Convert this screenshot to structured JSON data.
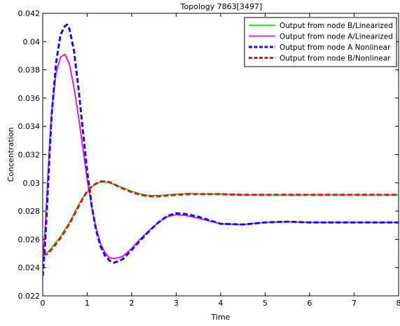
{
  "chart_data": {
    "type": "line",
    "title": "Topology 7863[3497]",
    "xlabel": "Time",
    "ylabel": "Concentration",
    "xlim": [
      0,
      8
    ],
    "ylim": [
      0.022,
      0.042
    ],
    "xticks": [
      0,
      1,
      2,
      3,
      4,
      5,
      6,
      7,
      8
    ],
    "xtick_labels": [
      "0",
      "1",
      "2",
      "3",
      "4",
      "5",
      "6",
      "7",
      "8"
    ],
    "yticks": [
      0.022,
      0.024,
      0.026,
      0.028,
      0.03,
      0.032,
      0.034,
      0.036,
      0.038,
      0.04,
      0.042
    ],
    "ytick_labels": [
      "0.022",
      "0.024",
      "0.026",
      "0.028",
      "0.03",
      "0.032",
      "0.034",
      "0.036",
      "0.038",
      "0.04",
      "0.042"
    ],
    "grid": false,
    "legend_position": "top-right",
    "series": [
      {
        "name": "Output from node B/Linearized",
        "color": "#00ee00",
        "style": "solid",
        "x": [
          0,
          0.1,
          0.2,
          0.3,
          0.4,
          0.5,
          0.6,
          0.7,
          0.8,
          0.9,
          1.0,
          1.1,
          1.2,
          1.3,
          1.4,
          1.5,
          1.6,
          1.8,
          2.0,
          2.2,
          2.4,
          2.6,
          2.8,
          3.0,
          3.3,
          3.6,
          4.0,
          4.5,
          5.0,
          6.0,
          7.0,
          8.0
        ],
        "y": [
          0.0249,
          0.02505,
          0.0254,
          0.0258,
          0.0262,
          0.0267,
          0.0272,
          0.0278,
          0.0284,
          0.02895,
          0.02935,
          0.0297,
          0.02995,
          0.03005,
          0.03005,
          0.03,
          0.0299,
          0.02965,
          0.0294,
          0.0292,
          0.0291,
          0.0291,
          0.02915,
          0.0292,
          0.02925,
          0.0292,
          0.0292,
          0.02915,
          0.02915,
          0.02915,
          0.02915,
          0.02915
        ]
      },
      {
        "name": "Output from node A/Linearized",
        "color": "#ee00ee",
        "style": "solid",
        "x": [
          0,
          0.05,
          0.1,
          0.15,
          0.2,
          0.3,
          0.4,
          0.5,
          0.6,
          0.7,
          0.8,
          0.9,
          1.0,
          1.1,
          1.2,
          1.3,
          1.4,
          1.5,
          1.6,
          1.7,
          1.8,
          2.0,
          2.2,
          2.4,
          2.6,
          2.8,
          3.0,
          3.2,
          3.5,
          4.0,
          4.5,
          5.0,
          5.5,
          6.0,
          7.0,
          8.0
        ],
        "y": [
          0.0245,
          0.0265,
          0.0295,
          0.0325,
          0.035,
          0.0378,
          0.0389,
          0.0391,
          0.0384,
          0.0368,
          0.0348,
          0.0325,
          0.0302,
          0.0283,
          0.0268,
          0.0257,
          0.02505,
          0.0247,
          0.02465,
          0.0247,
          0.0248,
          0.02535,
          0.02605,
          0.02665,
          0.0272,
          0.0276,
          0.02775,
          0.0277,
          0.0275,
          0.0271,
          0.02705,
          0.0272,
          0.02725,
          0.0272,
          0.0272,
          0.0272
        ]
      },
      {
        "name": "Output from node A  Nonlinear",
        "color": "#1111ee",
        "style": "dashed",
        "x": [
          0,
          0.05,
          0.1,
          0.15,
          0.2,
          0.3,
          0.4,
          0.5,
          0.55,
          0.6,
          0.7,
          0.8,
          0.9,
          1.0,
          1.1,
          1.2,
          1.3,
          1.4,
          1.5,
          1.6,
          1.7,
          1.8,
          2.0,
          2.2,
          2.4,
          2.6,
          2.8,
          3.0,
          3.2,
          3.5,
          4.0,
          4.5,
          5.0,
          5.5,
          6.0,
          7.0,
          8.0
        ],
        "y": [
          0.0234,
          0.0255,
          0.0285,
          0.0318,
          0.0348,
          0.0385,
          0.0405,
          0.0411,
          0.0412,
          0.0409,
          0.0394,
          0.0368,
          0.0338,
          0.0308,
          0.0284,
          0.02665,
          0.0255,
          0.02485,
          0.0245,
          0.02435,
          0.02445,
          0.0246,
          0.02525,
          0.02595,
          0.0266,
          0.0272,
          0.02765,
          0.02785,
          0.0278,
          0.0276,
          0.0271,
          0.02705,
          0.0272,
          0.02725,
          0.0272,
          0.0272,
          0.0272
        ]
      },
      {
        "name": "Output from node B/Nonlinear",
        "color": "#ee1111",
        "style": "dashed",
        "x": [
          0,
          0.1,
          0.2,
          0.3,
          0.4,
          0.5,
          0.6,
          0.7,
          0.8,
          0.9,
          1.0,
          1.1,
          1.2,
          1.3,
          1.4,
          1.5,
          1.6,
          1.8,
          2.0,
          2.2,
          2.4,
          2.6,
          2.8,
          3.0,
          3.3,
          3.6,
          4.0,
          4.5,
          5.0,
          6.0,
          7.0,
          8.0
        ],
        "y": [
          0.0249,
          0.02495,
          0.0253,
          0.0257,
          0.0261,
          0.0266,
          0.0271,
          0.0277,
          0.0283,
          0.0289,
          0.0294,
          0.02975,
          0.02995,
          0.0301,
          0.0301,
          0.03005,
          0.0299,
          0.0296,
          0.02935,
          0.02915,
          0.02905,
          0.02905,
          0.0291,
          0.02915,
          0.0292,
          0.0292,
          0.0292,
          0.02915,
          0.02915,
          0.02915,
          0.02915,
          0.02915
        ]
      }
    ]
  }
}
